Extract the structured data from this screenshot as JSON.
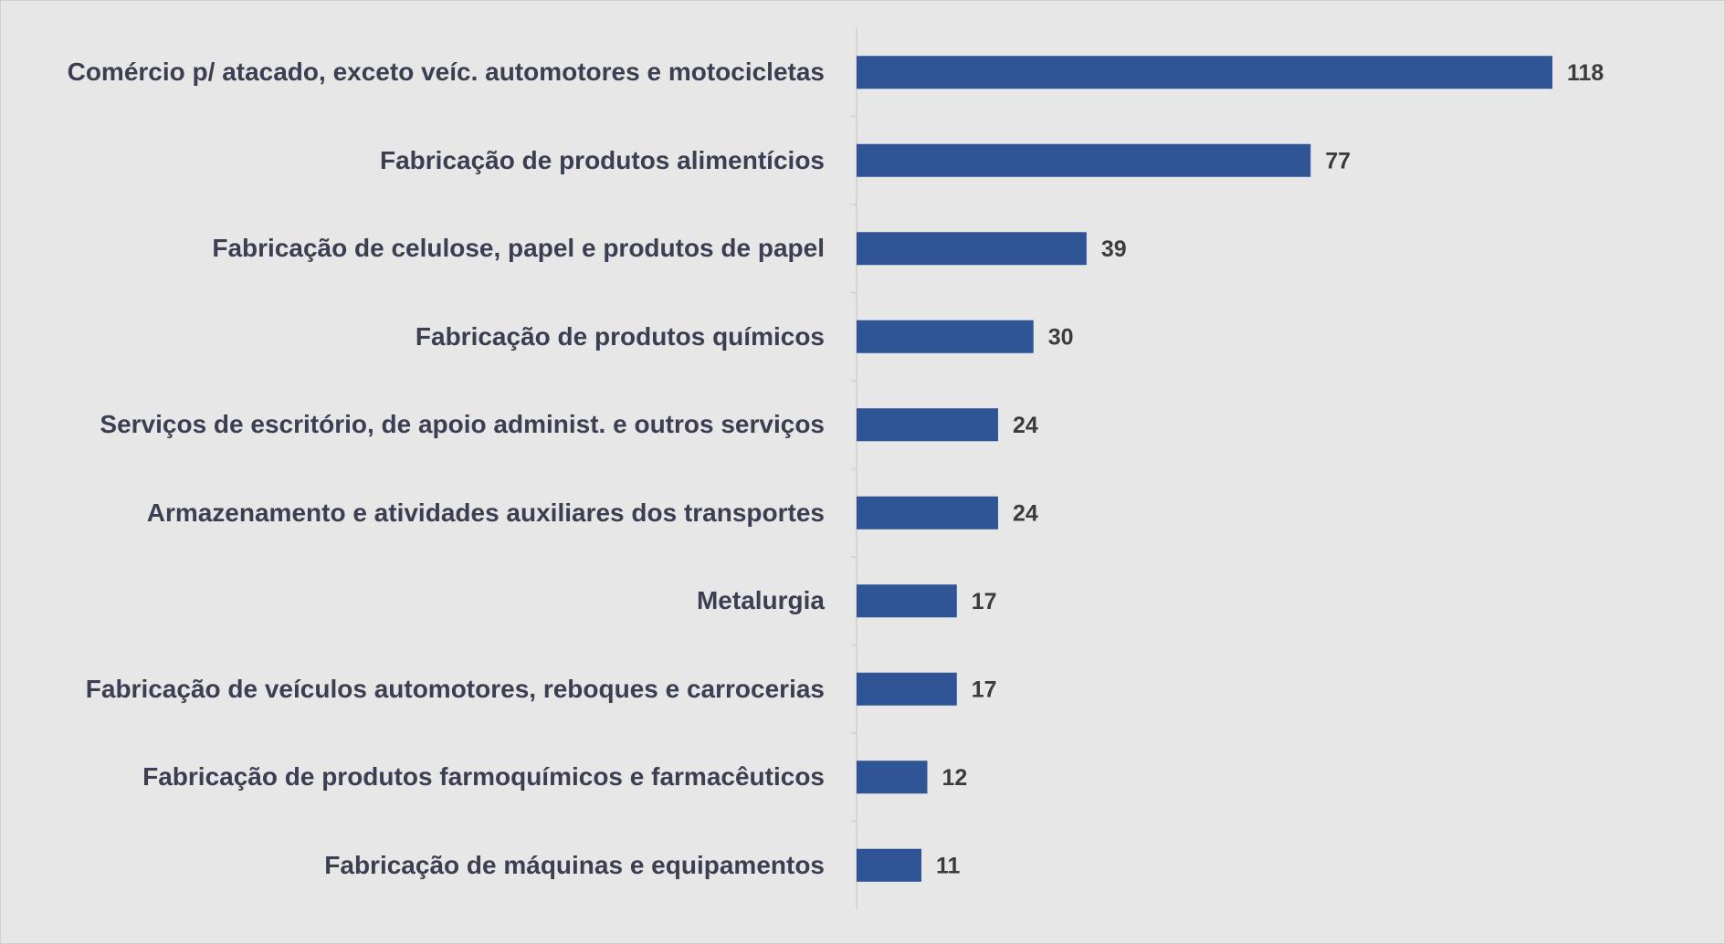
{
  "chart_data": {
    "type": "bar",
    "orientation": "horizontal",
    "categories": [
      "Comércio p/ atacado, exceto veíc. automotores e motocicletas",
      "Fabricação de produtos alimentícios",
      "Fabricação de celulose, papel e produtos de papel",
      "Fabricação de produtos químicos",
      "Serviços de escritório, de apoio administ. e outros serviços",
      "Armazenamento e atividades auxiliares dos transportes",
      "Metalurgia",
      "Fabricação de veículos automotores, reboques e carrocerias",
      "Fabricação de produtos farmoquímicos e farmacêuticos",
      "Fabricação de máquinas e equipamentos"
    ],
    "values": [
      118,
      77,
      39,
      30,
      24,
      24,
      17,
      17,
      12,
      11
    ],
    "color": "#2f5597"
  }
}
